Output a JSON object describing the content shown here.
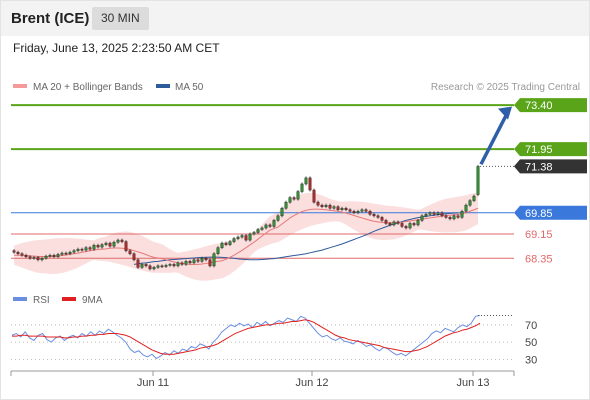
{
  "header": {
    "instrument": "Brent (ICE)",
    "timeframe": "30 MIN"
  },
  "timestamp": "Friday, June 13, 2025 2:23:50 AM CET",
  "legend": {
    "ma20": "MA 20 + Bollinger Bands",
    "ma50": "MA 50"
  },
  "credit": "Research © 2025 Trading Central",
  "rsi_legend": {
    "rsi": "RSI",
    "ma9": "9MA"
  },
  "colors": {
    "ma20_band": "#f4a4a4",
    "ma50": "#2e5b9a",
    "resistance": "#5aa419",
    "pivot": "#3a78dc",
    "support": "#e06a6a",
    "price_label": "#333333",
    "rsi": "#6a8fe0",
    "rsi_ma": "#e02020",
    "arrow": "#2e5fa8"
  },
  "chart_data": [
    {
      "type": "candlestick",
      "x": {
        "ticks": [
          "Jun 11",
          "Jun 12",
          "Jun 13"
        ]
      },
      "ylim": [
        67.7,
        73.7
      ],
      "grid": false,
      "legend_position": "top-left",
      "levels": [
        {
          "value": 73.4,
          "label": "73.40",
          "kind": "resistance"
        },
        {
          "value": 71.95,
          "label": "71.95",
          "kind": "resistance"
        },
        {
          "value": 71.38,
          "label": "71.38",
          "kind": "last-price"
        },
        {
          "value": 69.85,
          "label": "69.85",
          "kind": "pivot"
        },
        {
          "value": 69.15,
          "label": "69.15",
          "kind": "support"
        },
        {
          "value": 68.35,
          "label": "68.35",
          "kind": "support"
        }
      ],
      "close": [
        68.55,
        68.5,
        68.45,
        68.4,
        68.35,
        68.38,
        68.3,
        68.35,
        68.42,
        68.45,
        68.4,
        68.48,
        68.52,
        68.5,
        68.55,
        68.6,
        68.65,
        68.62,
        68.7,
        68.65,
        68.78,
        68.72,
        68.8,
        68.85,
        68.75,
        68.88,
        68.95,
        68.9,
        68.6,
        68.5,
        68.3,
        68.05,
        68.15,
        68.1,
        68.0,
        68.05,
        68.1,
        68.08,
        68.12,
        68.15,
        68.1,
        68.2,
        68.15,
        68.25,
        68.2,
        68.3,
        68.25,
        68.35,
        68.3,
        68.1,
        68.5,
        68.7,
        68.85,
        68.8,
        68.9,
        69.0,
        69.05,
        69.1,
        68.95,
        69.15,
        69.2,
        69.3,
        69.35,
        69.45,
        69.4,
        69.6,
        69.75,
        70.0,
        70.2,
        70.35,
        70.3,
        70.55,
        70.8,
        71.0,
        70.6,
        70.2,
        70.1,
        70.05,
        70.1,
        70.0,
        70.05,
        69.95,
        70.0,
        69.95,
        69.9,
        69.85,
        69.9,
        69.95,
        69.9,
        69.8,
        69.75,
        69.7,
        69.6,
        69.5,
        69.45,
        69.55,
        69.5,
        69.4,
        69.35,
        69.5,
        69.45,
        69.6,
        69.75,
        69.8,
        69.85,
        69.8,
        69.85,
        69.75,
        69.7,
        69.65,
        69.75,
        69.7,
        69.9,
        70.1,
        70.25,
        70.4,
        71.38
      ],
      "open": [
        68.6,
        68.55,
        68.5,
        68.45,
        68.4,
        68.35,
        68.38,
        68.3,
        68.35,
        68.42,
        68.45,
        68.4,
        68.48,
        68.52,
        68.5,
        68.55,
        68.6,
        68.65,
        68.62,
        68.7,
        68.65,
        68.78,
        68.72,
        68.8,
        68.85,
        68.75,
        68.88,
        68.95,
        68.9,
        68.6,
        68.5,
        68.3,
        68.05,
        68.15,
        68.1,
        68.0,
        68.05,
        68.1,
        68.08,
        68.12,
        68.15,
        68.1,
        68.2,
        68.15,
        68.25,
        68.2,
        68.3,
        68.25,
        68.35,
        68.3,
        68.1,
        68.5,
        68.7,
        68.85,
        68.8,
        68.9,
        69.0,
        69.05,
        69.1,
        68.95,
        69.15,
        69.2,
        69.3,
        69.35,
        69.45,
        69.4,
        69.6,
        69.75,
        70.0,
        70.2,
        70.35,
        70.3,
        70.55,
        70.8,
        71.0,
        70.6,
        70.2,
        70.1,
        70.05,
        70.1,
        70.0,
        70.05,
        69.95,
        70.0,
        69.95,
        69.9,
        69.85,
        69.9,
        69.95,
        69.9,
        69.8,
        69.75,
        69.7,
        69.6,
        69.5,
        69.45,
        69.55,
        69.5,
        69.4,
        69.35,
        69.5,
        69.45,
        69.6,
        69.75,
        69.8,
        69.85,
        69.8,
        69.85,
        69.75,
        69.7,
        69.65,
        69.75,
        69.7,
        69.9,
        70.1,
        70.25,
        70.45
      ],
      "ma20": [
        68.45,
        68.45,
        68.45,
        68.44,
        68.43,
        68.42,
        68.41,
        68.41,
        68.41,
        68.42,
        68.43,
        68.44,
        68.46,
        68.48,
        68.5,
        68.52,
        68.55,
        68.57,
        68.6,
        68.62,
        68.64,
        68.66,
        68.68,
        68.69,
        68.69,
        68.68,
        68.67,
        68.64,
        68.6,
        68.56,
        68.52,
        68.47,
        68.42,
        68.38,
        68.34,
        68.3,
        68.26,
        68.23,
        68.2,
        68.18,
        68.16,
        68.15,
        68.15,
        68.15,
        68.16,
        68.18,
        68.2,
        68.23,
        68.27,
        68.32,
        68.38,
        68.45,
        68.53,
        68.61,
        68.7,
        68.79,
        68.88,
        68.98,
        69.08,
        69.18,
        69.28,
        69.38,
        69.48,
        69.58,
        69.68,
        69.76,
        69.83,
        69.89,
        69.93,
        69.96,
        69.97,
        69.97,
        69.96,
        69.95,
        69.93,
        69.9,
        69.87,
        69.84,
        69.8,
        69.76,
        69.72,
        69.68,
        69.64,
        69.6,
        69.57,
        69.55,
        69.53,
        69.52,
        69.52,
        69.53,
        69.54,
        69.56,
        69.58,
        69.6,
        69.62,
        69.64,
        69.66,
        69.68,
        69.7,
        69.72,
        69.74,
        69.76,
        69.78,
        69.8,
        69.82,
        69.85,
        69.9,
        69.95,
        70.0
      ],
      "ma50": [
        68.15,
        68.17,
        68.19,
        68.2,
        68.22,
        68.24,
        68.25,
        68.27,
        68.28,
        68.3,
        68.31,
        68.32,
        68.33,
        68.34,
        68.35,
        68.36,
        68.37,
        68.38,
        68.38,
        68.39,
        68.39,
        68.39,
        68.38,
        68.37,
        68.36,
        68.35,
        68.33,
        68.32,
        68.31,
        68.3,
        68.3,
        68.3,
        68.31,
        68.32,
        68.33,
        68.34,
        68.36,
        68.38,
        68.4,
        68.42,
        68.44,
        68.46,
        68.48,
        68.5,
        68.53,
        68.56,
        68.59,
        68.62,
        68.66,
        68.7,
        68.74,
        68.78,
        68.82,
        68.87,
        68.92,
        68.97,
        69.02,
        69.07,
        69.12,
        69.18,
        69.24,
        69.29,
        69.34,
        69.39,
        69.44,
        69.48,
        69.52,
        69.56,
        69.6,
        69.63,
        69.66,
        69.69,
        69.71,
        69.73,
        69.75,
        69.77,
        69.79,
        69.8,
        69.82,
        69.83,
        69.84,
        69.85
      ],
      "band_width": 0.45
    },
    {
      "type": "line",
      "name": "RSI panel",
      "x": {
        "ticks": [
          "Jun 11",
          "Jun 12",
          "Jun 13"
        ]
      },
      "ylim": [
        20,
        85
      ],
      "yticks": [
        70,
        50,
        30
      ],
      "series": [
        {
          "name": "RSI",
          "values": [
            58,
            60,
            56,
            62,
            55,
            52,
            58,
            60,
            53,
            50,
            55,
            57,
            52,
            56,
            58,
            55,
            60,
            57,
            62,
            58,
            63,
            60,
            65,
            62,
            58,
            55,
            50,
            42,
            38,
            40,
            35,
            33,
            36,
            31,
            34,
            38,
            35,
            40,
            37,
            42,
            40,
            45,
            43,
            48,
            46,
            42,
            50,
            55,
            62,
            66,
            70,
            68,
            72,
            69,
            71,
            67,
            73,
            70,
            74,
            69,
            72,
            75,
            73,
            78,
            76,
            74,
            80,
            78,
            72,
            66,
            60,
            56,
            58,
            54,
            52,
            55,
            51,
            50,
            48,
            52,
            49,
            45,
            47,
            43,
            40,
            44,
            42,
            38,
            35,
            37,
            34,
            38,
            42,
            46,
            50,
            54,
            60,
            63,
            61,
            66,
            64,
            62,
            67,
            70,
            68,
            72,
            80,
            81
          ]
        },
        {
          "name": "9MA",
          "values": [
            57,
            57,
            58,
            58,
            57,
            57,
            57,
            57,
            56,
            56,
            56,
            56,
            55,
            55,
            56,
            56,
            57,
            57,
            58,
            58,
            59,
            59,
            60,
            60,
            60,
            59,
            58,
            56,
            53,
            50,
            47,
            44,
            41,
            39,
            37,
            36,
            36,
            36,
            37,
            38,
            39,
            40,
            41,
            43,
            44,
            45,
            46,
            48,
            51,
            54,
            57,
            60,
            62,
            64,
            66,
            67,
            68,
            69,
            70,
            70,
            71,
            72,
            72,
            73,
            74,
            74,
            75,
            76,
            75,
            73,
            70,
            67,
            64,
            61,
            58,
            56,
            55,
            53,
            52,
            51,
            50,
            49,
            48,
            47,
            46,
            44,
            43,
            42,
            41,
            40,
            39,
            39,
            40,
            41,
            43,
            45,
            48,
            51,
            54,
            57,
            59,
            61,
            62,
            64,
            65,
            67,
            69,
            72
          ]
        }
      ]
    }
  ]
}
